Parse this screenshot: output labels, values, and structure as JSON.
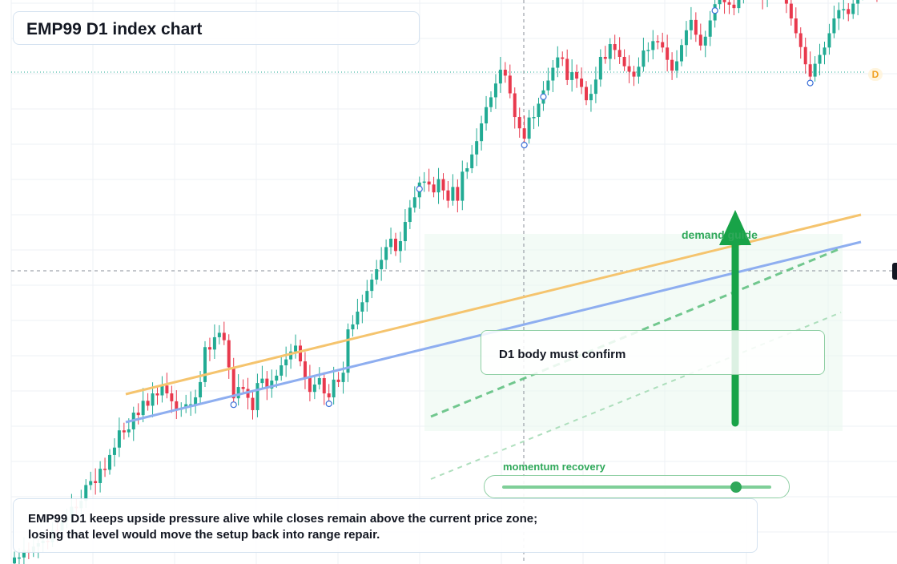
{
  "title": "EMP99 D1 index chart",
  "note": {
    "line1": "EMP99 D1 keeps upside pressure alive while closes remain above the current price zone;",
    "line2": "losing that level would move the setup back into range repair."
  },
  "confirm_label": "D1 body must confirm",
  "demand_label": "demand guide",
  "momentum": {
    "label": "momentum recovery",
    "level": 0.87
  },
  "badge": "D",
  "colors": {
    "up": "#22ab94",
    "down": "#e8394d",
    "orange_line": "#f5c46e",
    "blue_line": "#8eaef0",
    "green_accent": "#18a348"
  },
  "chart_data": {
    "type": "candlestick",
    "title": "EMP99 D1 index chart",
    "ylim": [
      0,
      100
    ],
    "current_price": 87,
    "closes": [
      1.0,
      1.0,
      2.5,
      2.1,
      3.2,
      3.9,
      4.4,
      4.1,
      6.6,
      6.4,
      8.4,
      9.0,
      11.3,
      11.0,
      12.5,
      15.7,
      16.5,
      16.1,
      19.0,
      18.8,
      21.8,
      23.3,
      26.8,
      26.4,
      27.0,
      30.4,
      29.9,
      32.8,
      31.8,
      34.3,
      33.9,
      35.9,
      34.3,
      32.7,
      31.0,
      31.3,
      32.1,
      32.1,
      33.5,
      36.6,
      43.7,
      43.2,
      45.7,
      46.6,
      45.1,
      39.6,
      33.3,
      35.6,
      35.2,
      33.4,
      30.9,
      36.4,
      37.3,
      35.3,
      36.9,
      37.9,
      40.0,
      41.2,
      42.8,
      44.0,
      40.8,
      37.5,
      34.6,
      36.1,
      37.4,
      34.3,
      33.5,
      37.1,
      36.6,
      38.5,
      47.3,
      48.3,
      50.9,
      52.8,
      55.1,
      57.4,
      59.5,
      61.4,
      64.0,
      65.7,
      63.2,
      65.2,
      69.1,
      72.0,
      74.1,
      77.1,
      77.3,
      76.7,
      75.1,
      77.8,
      75.5,
      73.4,
      76.2,
      73.4,
      79.3,
      80.0,
      82.8,
      85.5,
      89.1,
      92.4,
      94.4,
      97.2,
      100.0,
      98.8,
      95.2,
      90.4,
      88.1,
      86.0,
      90.3,
      90.4,
      93.1,
      95.8,
      97.8,
      100.4,
      102.5,
      102.2,
      97.9,
      99.5,
      98.2,
      96.5,
      93.8,
      95.1,
      98.0,
      102.6,
      102.2,
      105.2,
      104.0,
      102.6,
      100.7,
      99.6,
      98.6,
      100.6,
      103.9,
      104.0,
      105.8,
      105.6,
      104.5,
      102.0,
      99.8,
      101.7,
      105.0,
      108.0,
      110.1,
      107.1,
      104.9,
      106.7,
      110.0,
      113.3,
      115.6,
      113.7,
      113.2,
      112.5,
      115.8,
      117.6,
      117.1,
      117.7,
      116.9,
      114.6,
      117.3,
      118.2,
      116.9,
      117.5,
      113.4,
      110.4,
      107.4,
      104.6,
      101.1,
      98.6,
      101.2,
      103.0,
      104.5,
      107.4,
      110.4,
      112.1,
      112.3,
      111.3,
      113.4,
      116.0,
      118.2,
      117.0,
      117.0,
      116.1
    ]
  }
}
